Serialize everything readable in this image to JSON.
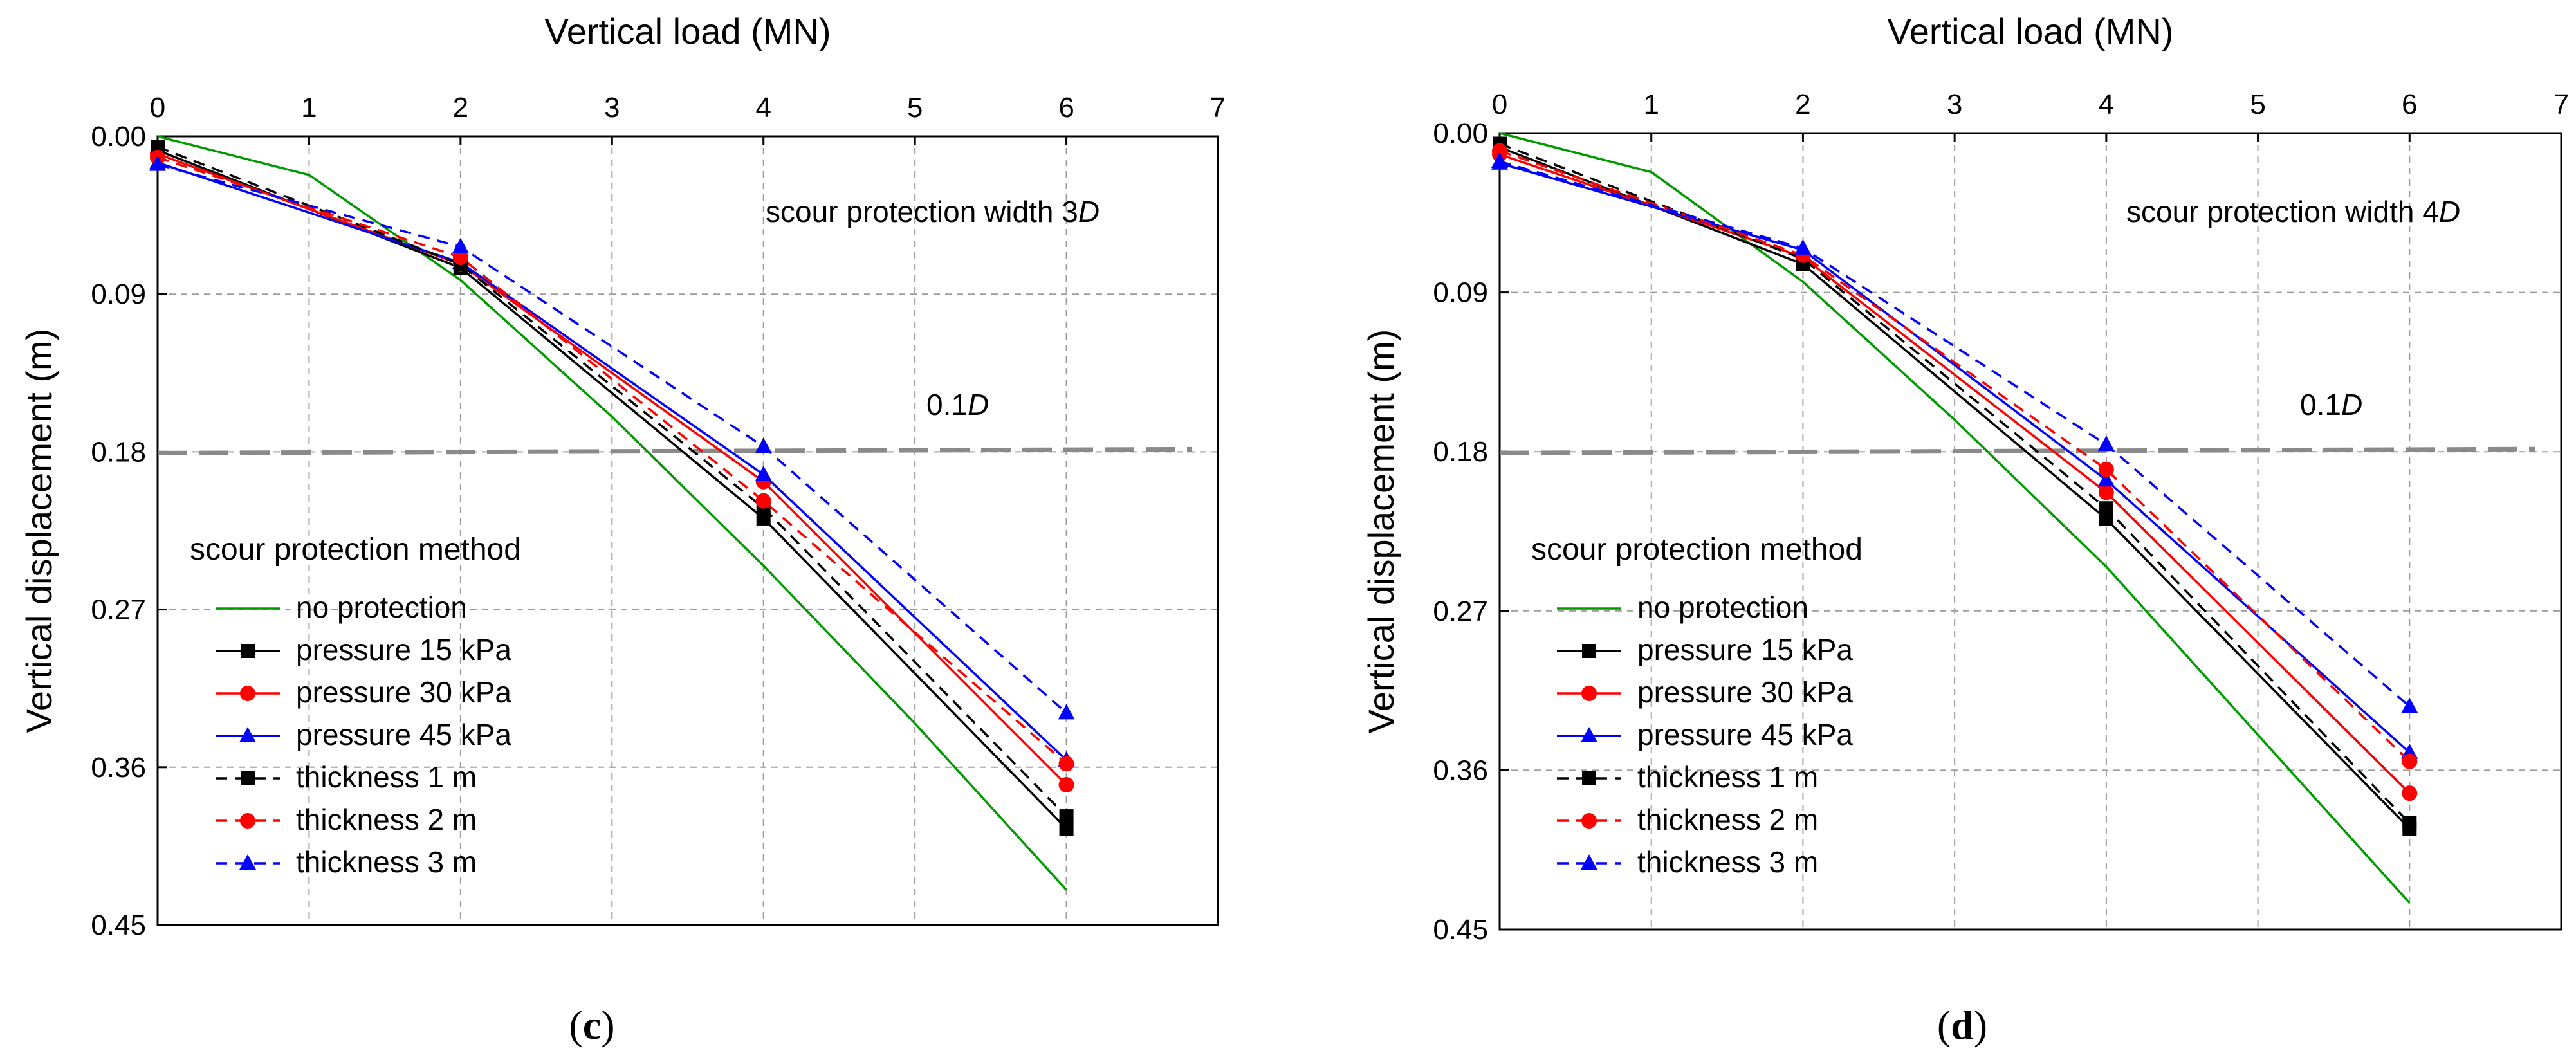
{
  "figure": {
    "panels": [
      {
        "panel_open": "(",
        "panel_letter": "c",
        "panel_close": ")",
        "annotation_text": "scour protection width 3",
        "annotation_italic": "D",
        "ref_label": "0.1",
        "ref_label_italic": "D"
      },
      {
        "panel_open": "(",
        "panel_letter": "d",
        "panel_close": ")",
        "annotation_text": "scour protection width 4",
        "annotation_italic": "D",
        "ref_label": "0.1",
        "ref_label_italic": "D"
      }
    ]
  },
  "chart_data": [
    {
      "type": "line",
      "title": "",
      "xlabel": "Vertical load (MN)",
      "ylabel": "Vertical displacement (m)",
      "xlim": [
        0,
        7
      ],
      "ylim": [
        0,
        0.45
      ],
      "y_inverted": true,
      "x_axis_position": "top",
      "xticks": [
        0,
        1,
        2,
        3,
        4,
        5,
        6,
        7
      ],
      "yticks": [
        "0.00",
        "0.09",
        "0.18",
        "0.27",
        "0.36",
        "0.45"
      ],
      "grid": true,
      "legend_title": "scour protection method",
      "legend_position": "bottom-left",
      "reference_line": {
        "y": 0.18,
        "label": "0.1D"
      },
      "annotation": "scour protection width 3D",
      "series": [
        {
          "name": "no protection",
          "color": "#009900",
          "dash": "solid",
          "marker": "none",
          "x": [
            0,
            1,
            2,
            3,
            4,
            5,
            6
          ],
          "y": [
            0.0,
            0.022,
            0.082,
            0.16,
            0.245,
            0.335,
            0.43
          ]
        },
        {
          "name": "pressure 15 kPa",
          "color": "#000000",
          "dash": "solid",
          "marker": "square",
          "x": [
            0,
            2,
            4,
            6
          ],
          "y": [
            0.008,
            0.075,
            0.218,
            0.395
          ]
        },
        {
          "name": "pressure 30 kPa",
          "color": "#ff0000",
          "dash": "solid",
          "marker": "circle",
          "x": [
            0,
            2,
            4,
            6
          ],
          "y": [
            0.01,
            0.073,
            0.197,
            0.37
          ]
        },
        {
          "name": "pressure 45 kPa",
          "color": "#0000ff",
          "dash": "solid",
          "marker": "triangle",
          "x": [
            0,
            2,
            4,
            6
          ],
          "y": [
            0.015,
            0.072,
            0.193,
            0.356
          ]
        },
        {
          "name": "thickness 1 m",
          "color": "#000000",
          "dash": "dashed",
          "marker": "square",
          "x": [
            0,
            2,
            4,
            6
          ],
          "y": [
            0.006,
            0.073,
            0.212,
            0.388
          ]
        },
        {
          "name": "thickness 2 m",
          "color": "#ff0000",
          "dash": "dashed",
          "marker": "circle",
          "x": [
            0,
            2,
            4,
            6
          ],
          "y": [
            0.012,
            0.069,
            0.208,
            0.358
          ]
        },
        {
          "name": "thickness 3 m",
          "color": "#0000ff",
          "dash": "dashed",
          "marker": "triangle",
          "x": [
            0,
            2,
            4,
            6
          ],
          "y": [
            0.016,
            0.063,
            0.177,
            0.329
          ]
        }
      ]
    },
    {
      "type": "line",
      "title": "",
      "xlabel": "Vertical load (MN)",
      "ylabel": "Vertical displacement (m)",
      "xlim": [
        0,
        7
      ],
      "ylim": [
        0,
        0.45
      ],
      "y_inverted": true,
      "x_axis_position": "top",
      "xticks": [
        0,
        1,
        2,
        3,
        4,
        5,
        6,
        7
      ],
      "yticks": [
        "0.00",
        "0.09",
        "0.18",
        "0.27",
        "0.36",
        "0.45"
      ],
      "grid": true,
      "legend_title": "scour protection method",
      "legend_position": "bottom-left",
      "reference_line": {
        "y": 0.18,
        "label": "0.1D"
      },
      "annotation": "scour protection width 4D",
      "series": [
        {
          "name": "no protection",
          "color": "#009900",
          "dash": "solid",
          "marker": "none",
          "x": [
            0,
            1,
            2,
            3,
            4,
            5,
            6
          ],
          "y": [
            0.0,
            0.022,
            0.084,
            0.162,
            0.245,
            0.34,
            0.435
          ]
        },
        {
          "name": "pressure 15 kPa",
          "color": "#000000",
          "dash": "solid",
          "marker": "square",
          "x": [
            0,
            2,
            4,
            6
          ],
          "y": [
            0.008,
            0.074,
            0.218,
            0.393
          ]
        },
        {
          "name": "pressure 30 kPa",
          "color": "#ff0000",
          "dash": "solid",
          "marker": "circle",
          "x": [
            0,
            2,
            4,
            6
          ],
          "y": [
            0.012,
            0.07,
            0.203,
            0.373
          ]
        },
        {
          "name": "pressure 45 kPa",
          "color": "#0000ff",
          "dash": "solid",
          "marker": "triangle",
          "x": [
            0,
            2,
            4,
            6
          ],
          "y": [
            0.017,
            0.066,
            0.196,
            0.35
          ]
        },
        {
          "name": "thickness 1 m",
          "color": "#000000",
          "dash": "dashed",
          "marker": "square",
          "x": [
            0,
            2,
            4,
            6
          ],
          "y": [
            0.006,
            0.071,
            0.212,
            0.39
          ]
        },
        {
          "name": "thickness 2 m",
          "color": "#ff0000",
          "dash": "dashed",
          "marker": "circle",
          "x": [
            0,
            2,
            4,
            6
          ],
          "y": [
            0.01,
            0.069,
            0.19,
            0.355
          ]
        },
        {
          "name": "thickness 3 m",
          "color": "#0000ff",
          "dash": "dashed",
          "marker": "triangle",
          "x": [
            0,
            2,
            4,
            6
          ],
          "y": [
            0.016,
            0.065,
            0.176,
            0.324
          ]
        }
      ]
    }
  ]
}
